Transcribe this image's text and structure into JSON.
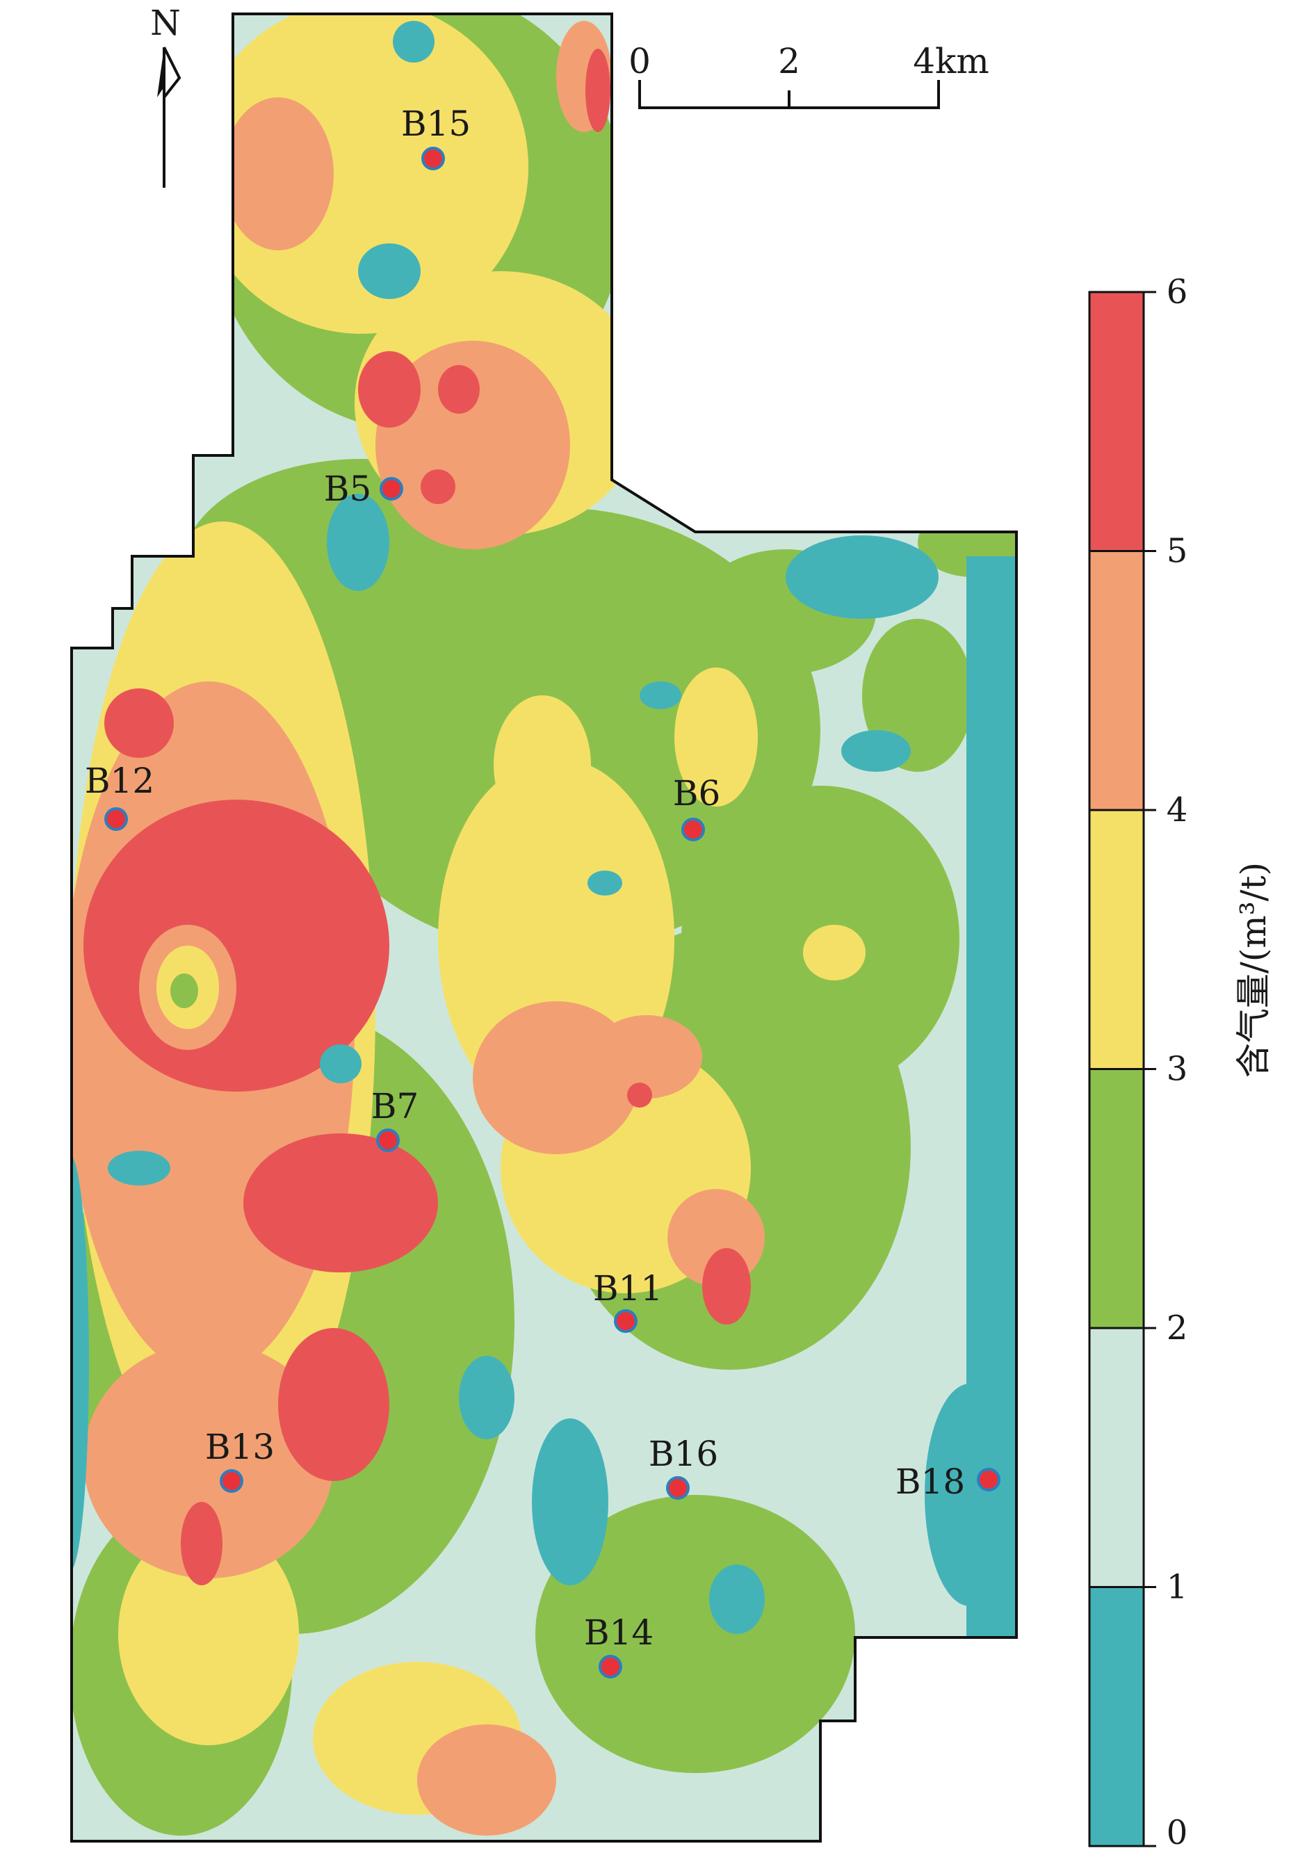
{
  "north_label": "N",
  "scale_bar": {
    "labels": [
      "0",
      "2",
      "4km"
    ]
  },
  "legend": {
    "title": "含气量/(m³/t)",
    "ticks": [
      "0",
      "1",
      "2",
      "3",
      "4",
      "5",
      "6"
    ],
    "classes": [
      {
        "range": "0-1",
        "color": "#43b3b8"
      },
      {
        "range": "1-2",
        "color": "#cde6dc"
      },
      {
        "range": "2-3",
        "color": "#8cc04d"
      },
      {
        "range": "3-4",
        "color": "#f5e067"
      },
      {
        "range": "4-5",
        "color": "#f2a073"
      },
      {
        "range": "5-6",
        "color": "#e85455"
      }
    ]
  },
  "wells": [
    {
      "name": "B15"
    },
    {
      "name": "B5"
    },
    {
      "name": "B12"
    },
    {
      "name": "B6"
    },
    {
      "name": "B7"
    },
    {
      "name": "B11"
    },
    {
      "name": "B13"
    },
    {
      "name": "B16"
    },
    {
      "name": "B18"
    },
    {
      "name": "B14"
    }
  ],
  "colors": {
    "well_fill": "#e8323a",
    "well_ring": "#2a7fc0",
    "outline": "#111111"
  }
}
